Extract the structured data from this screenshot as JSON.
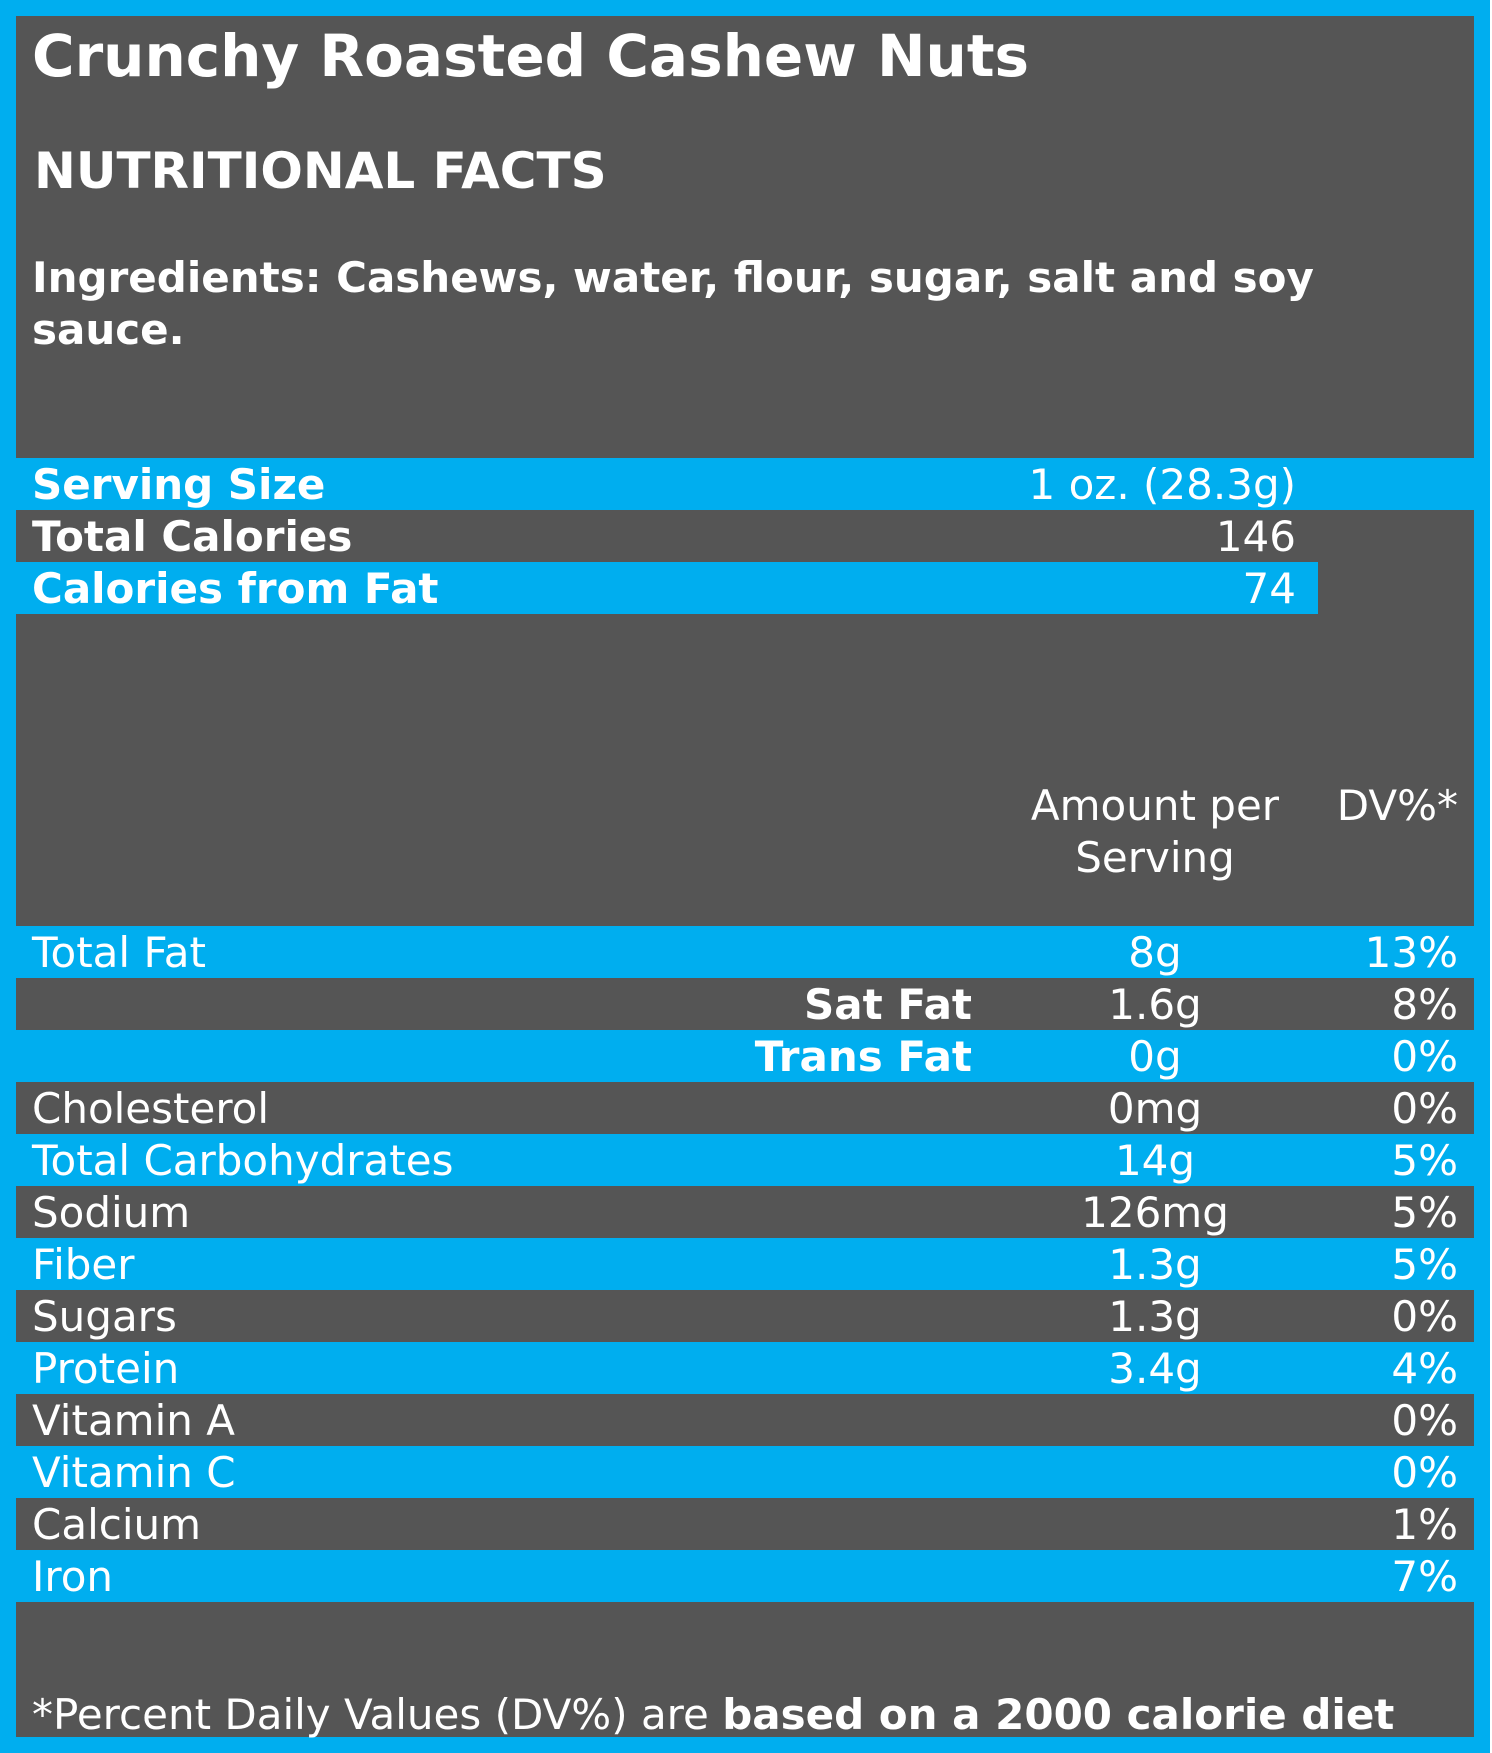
{
  "title": "Crunchy Roasted Cashew Nuts",
  "section_heading": "NUTRITIONAL FACTS",
  "ingredients": "Ingredients: Cashews, water, flour, sugar, salt and soy sauce.",
  "summary": [
    {
      "label": "Serving Size",
      "value": "1 oz. (28.3g)"
    },
    {
      "label": "Total Calories",
      "value": "146"
    },
    {
      "label": "Calories from Fat",
      "value": "74"
    }
  ],
  "columns": {
    "amount": "Amount per Serving",
    "dv": "DV%*"
  },
  "nutrients": [
    {
      "label": "Total Fat",
      "amount": "8g",
      "dv": "13%"
    },
    {
      "label": "Sat Fat",
      "amount": "1.6g",
      "dv": "8%"
    },
    {
      "label": "Trans Fat",
      "amount": "0g",
      "dv": "0%"
    },
    {
      "label": "Cholesterol",
      "amount": "0mg",
      "dv": "0%"
    },
    {
      "label": "Total Carbohydrates",
      "amount": "14g",
      "dv": "5%"
    },
    {
      "label": "Sodium",
      "amount": "126mg",
      "dv": "5%"
    },
    {
      "label": "Fiber",
      "amount": "1.3g",
      "dv": "5%"
    },
    {
      "label": "Sugars",
      "amount": "1.3g",
      "dv": "0%"
    },
    {
      "label": "Protein",
      "amount": "3.4g",
      "dv": "4%"
    },
    {
      "label": "Vitamin A",
      "amount": "",
      "dv": "0%"
    },
    {
      "label": "Vitamin C",
      "amount": "",
      "dv": "0%"
    },
    {
      "label": "Calcium",
      "amount": "",
      "dv": "1%"
    },
    {
      "label": "Iron",
      "amount": "",
      "dv": "7%"
    }
  ],
  "footnote": {
    "prefix": "*Percent Daily Values (DV%) are ",
    "emphasis": "based on a 2000 calorie diet"
  },
  "colors": {
    "accent": "#00aeef",
    "panel": "#555555",
    "text": "#ffffff"
  }
}
